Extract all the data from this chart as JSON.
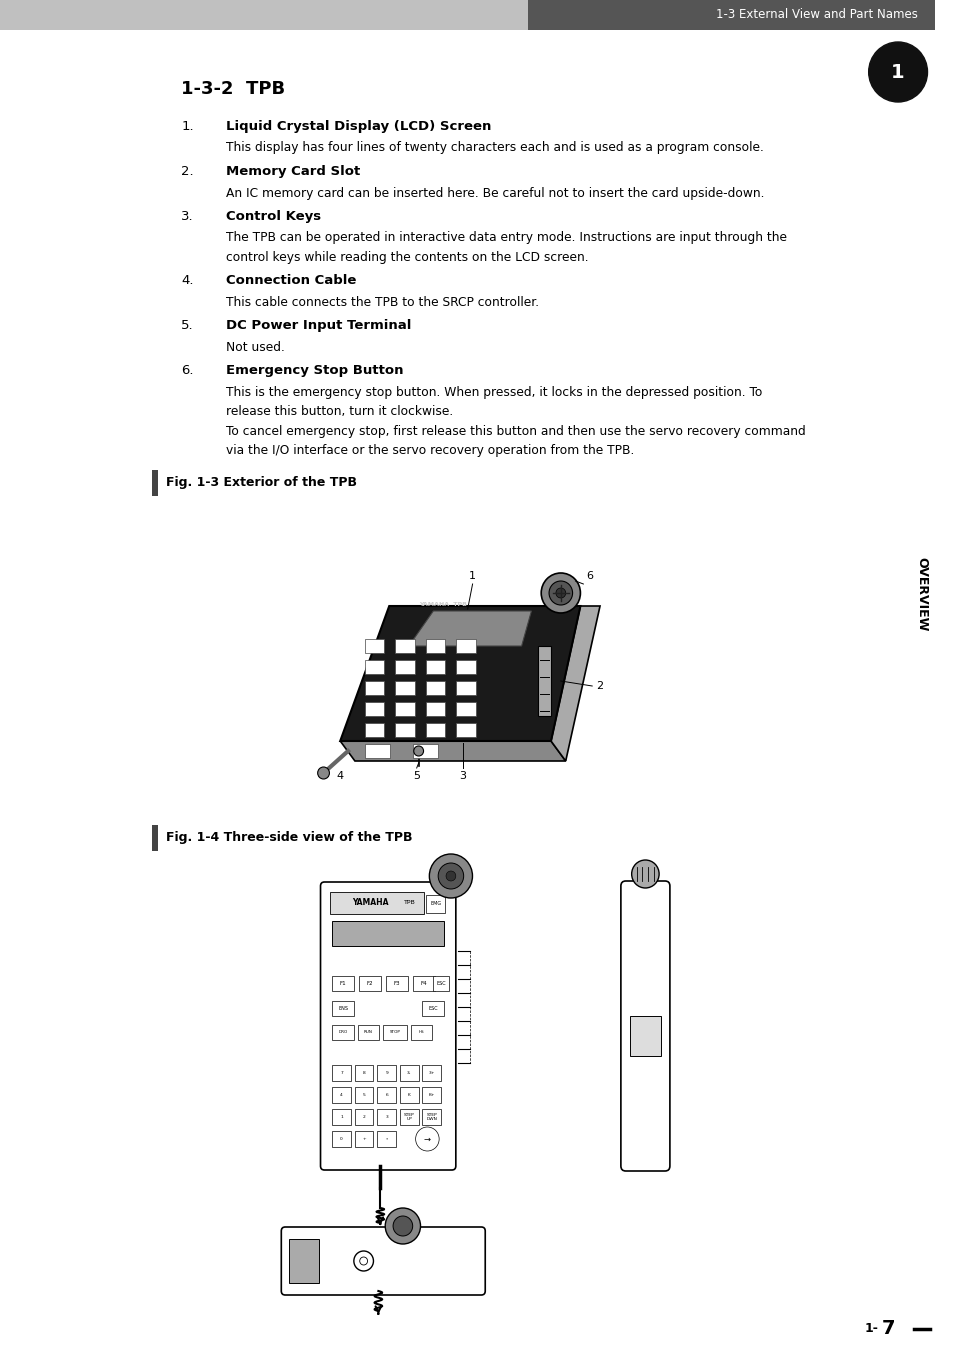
{
  "page_width": 9.54,
  "page_height": 13.51,
  "dpi": 100,
  "bg_color": "#ffffff",
  "header_bar_color_left": "#c0c0c0",
  "header_bar_color_right": "#555555",
  "header_text": "1-3 External View and Part Names",
  "header_text_color": "#ffffff",
  "chapter_badge_color": "#111111",
  "chapter_number": "1",
  "sidebar_text": "OVERVIEW",
  "title": "1-3-2  TPB",
  "left_accent_color": "#444444",
  "items": [
    {
      "number": "1",
      "bold": "Liquid Crystal Display (LCD) Screen",
      "desc": "This display has four lines of twenty characters each and is used as a program console."
    },
    {
      "number": "2",
      "bold": "Memory Card Slot",
      "desc": "An IC memory card can be inserted here. Be careful not to insert the card upside-down."
    },
    {
      "number": "3",
      "bold": "Control Keys",
      "desc": "The TPB can be operated in interactive data entry mode. Instructions are input through the\ncontrol keys while reading the contents on the LCD screen."
    },
    {
      "number": "4",
      "bold": "Connection Cable",
      "desc": "This cable connects the TPB to the SRCP controller."
    },
    {
      "number": "5",
      "bold": "DC Power Input Terminal",
      "desc": "Not used."
    },
    {
      "number": "6",
      "bold": "Emergency Stop Button",
      "desc": "This is the emergency stop button. When pressed, it locks in the depressed position. To\nrelease this button, turn it clockwise.\nTo cancel emergency stop, first release this button and then use the servo recovery command\nvia the I/O interface or the servo recovery operation from the TPB."
    }
  ],
  "fig1_caption": "Fig. 1-3 Exterior of the TPB",
  "fig2_caption": "Fig. 1-4 Three-side view of the TPB",
  "page_number_prefix": "1-",
  "page_number_main": "7"
}
